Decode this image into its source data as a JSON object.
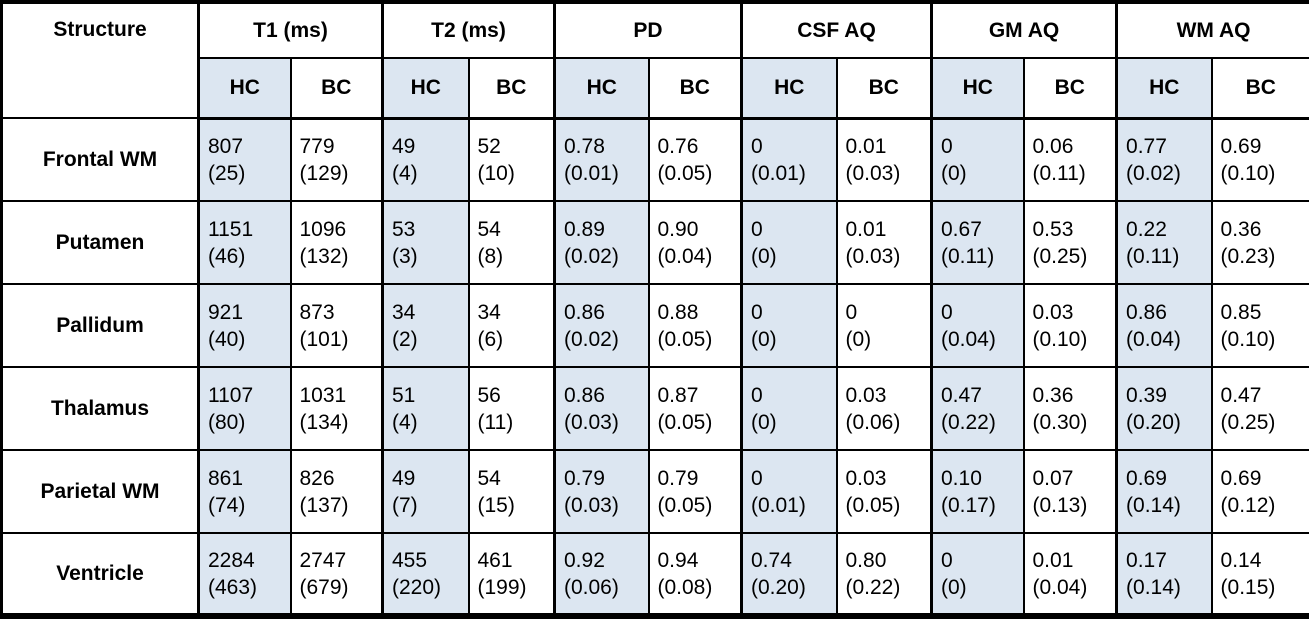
{
  "colors": {
    "hc_fill": "#dce6f1",
    "border": "#000000",
    "text": "#000000"
  },
  "table": {
    "corner_header": "Structure",
    "groups": [
      {
        "label": "T1 (ms)"
      },
      {
        "label": "T2 (ms)"
      },
      {
        "label": "PD"
      },
      {
        "label": "CSF AQ"
      },
      {
        "label": "GM AQ"
      },
      {
        "label": "WM AQ"
      }
    ],
    "subheaders": [
      "HC",
      "BC"
    ],
    "rows": [
      {
        "structure": "Frontal WM",
        "cells": [
          {
            "v": "807",
            "sd": "(25)"
          },
          {
            "v": "779",
            "sd": "(129)"
          },
          {
            "v": "49",
            "sd": "(4)"
          },
          {
            "v": "52",
            "sd": "(10)"
          },
          {
            "v": "0.78",
            "sd": "(0.01)"
          },
          {
            "v": "0.76",
            "sd": "(0.05)"
          },
          {
            "v": "0",
            "sd": "(0.01)"
          },
          {
            "v": "0.01",
            "sd": "(0.03)"
          },
          {
            "v": "0",
            "sd": "(0)"
          },
          {
            "v": "0.06",
            "sd": "(0.11)"
          },
          {
            "v": "0.77",
            "sd": "(0.02)"
          },
          {
            "v": "0.69",
            "sd": "(0.10)"
          }
        ]
      },
      {
        "structure": "Putamen",
        "cells": [
          {
            "v": "1151",
            "sd": "(46)"
          },
          {
            "v": "1096",
            "sd": "(132)"
          },
          {
            "v": "53",
            "sd": "(3)"
          },
          {
            "v": "54",
            "sd": "(8)"
          },
          {
            "v": "0.89",
            "sd": "(0.02)"
          },
          {
            "v": "0.90",
            "sd": "(0.04)"
          },
          {
            "v": "0",
            "sd": "(0)"
          },
          {
            "v": "0.01",
            "sd": "(0.03)"
          },
          {
            "v": "0.67",
            "sd": "(0.11)"
          },
          {
            "v": "0.53",
            "sd": "(0.25)"
          },
          {
            "v": "0.22",
            "sd": "(0.11)"
          },
          {
            "v": "0.36",
            "sd": "(0.23)"
          }
        ]
      },
      {
        "structure": "Pallidum",
        "cells": [
          {
            "v": "921",
            "sd": "(40)"
          },
          {
            "v": "873",
            "sd": "(101)"
          },
          {
            "v": "34",
            "sd": "(2)"
          },
          {
            "v": "34",
            "sd": "(6)"
          },
          {
            "v": "0.86",
            "sd": "(0.02)"
          },
          {
            "v": "0.88",
            "sd": "(0.05)"
          },
          {
            "v": "0",
            "sd": "(0)"
          },
          {
            "v": "0",
            "sd": "(0)"
          },
          {
            "v": "0",
            "sd": "(0.04)"
          },
          {
            "v": "0.03",
            "sd": "(0.10)"
          },
          {
            "v": "0.86",
            "sd": "(0.04)"
          },
          {
            "v": "0.85",
            "sd": "(0.10)"
          }
        ]
      },
      {
        "structure": "Thalamus",
        "cells": [
          {
            "v": "1107",
            "sd": "(80)"
          },
          {
            "v": "1031",
            "sd": "(134)"
          },
          {
            "v": "51",
            "sd": "(4)"
          },
          {
            "v": "56",
            "sd": "(11)"
          },
          {
            "v": "0.86",
            "sd": "(0.03)"
          },
          {
            "v": "0.87",
            "sd": "(0.05)"
          },
          {
            "v": "0",
            "sd": "(0)"
          },
          {
            "v": "0.03",
            "sd": "(0.06)"
          },
          {
            "v": "0.47",
            "sd": "(0.22)"
          },
          {
            "v": "0.36",
            "sd": "(0.30)"
          },
          {
            "v": "0.39",
            "sd": "(0.20)"
          },
          {
            "v": "0.47",
            "sd": "(0.25)"
          }
        ]
      },
      {
        "structure": "Parietal WM",
        "cells": [
          {
            "v": "861",
            "sd": "(74)"
          },
          {
            "v": "826",
            "sd": "(137)"
          },
          {
            "v": "49",
            "sd": "(7)"
          },
          {
            "v": "54",
            "sd": "(15)"
          },
          {
            "v": "0.79",
            "sd": "(0.03)"
          },
          {
            "v": "0.79",
            "sd": "(0.05)"
          },
          {
            "v": "0",
            "sd": "(0.01)"
          },
          {
            "v": "0.03",
            "sd": "(0.05)"
          },
          {
            "v": "0.10",
            "sd": "(0.17)"
          },
          {
            "v": "0.07",
            "sd": "(0.13)"
          },
          {
            "v": "0.69",
            "sd": "(0.14)"
          },
          {
            "v": "0.69",
            "sd": "(0.12)"
          }
        ]
      },
      {
        "structure": "Ventricle",
        "cells": [
          {
            "v": "2284",
            "sd": "(463)"
          },
          {
            "v": "2747",
            "sd": "(679)"
          },
          {
            "v": "455",
            "sd": "(220)"
          },
          {
            "v": "461",
            "sd": "(199)"
          },
          {
            "v": "0.92",
            "sd": "(0.06)"
          },
          {
            "v": "0.94",
            "sd": "(0.08)"
          },
          {
            "v": "0.74",
            "sd": "(0.20)"
          },
          {
            "v": "0.80",
            "sd": "(0.22)"
          },
          {
            "v": "0",
            "sd": "(0)"
          },
          {
            "v": "0.01",
            "sd": "(0.04)"
          },
          {
            "v": "0.17",
            "sd": "(0.14)"
          },
          {
            "v": "0.14",
            "sd": "(0.15)"
          }
        ]
      }
    ]
  }
}
